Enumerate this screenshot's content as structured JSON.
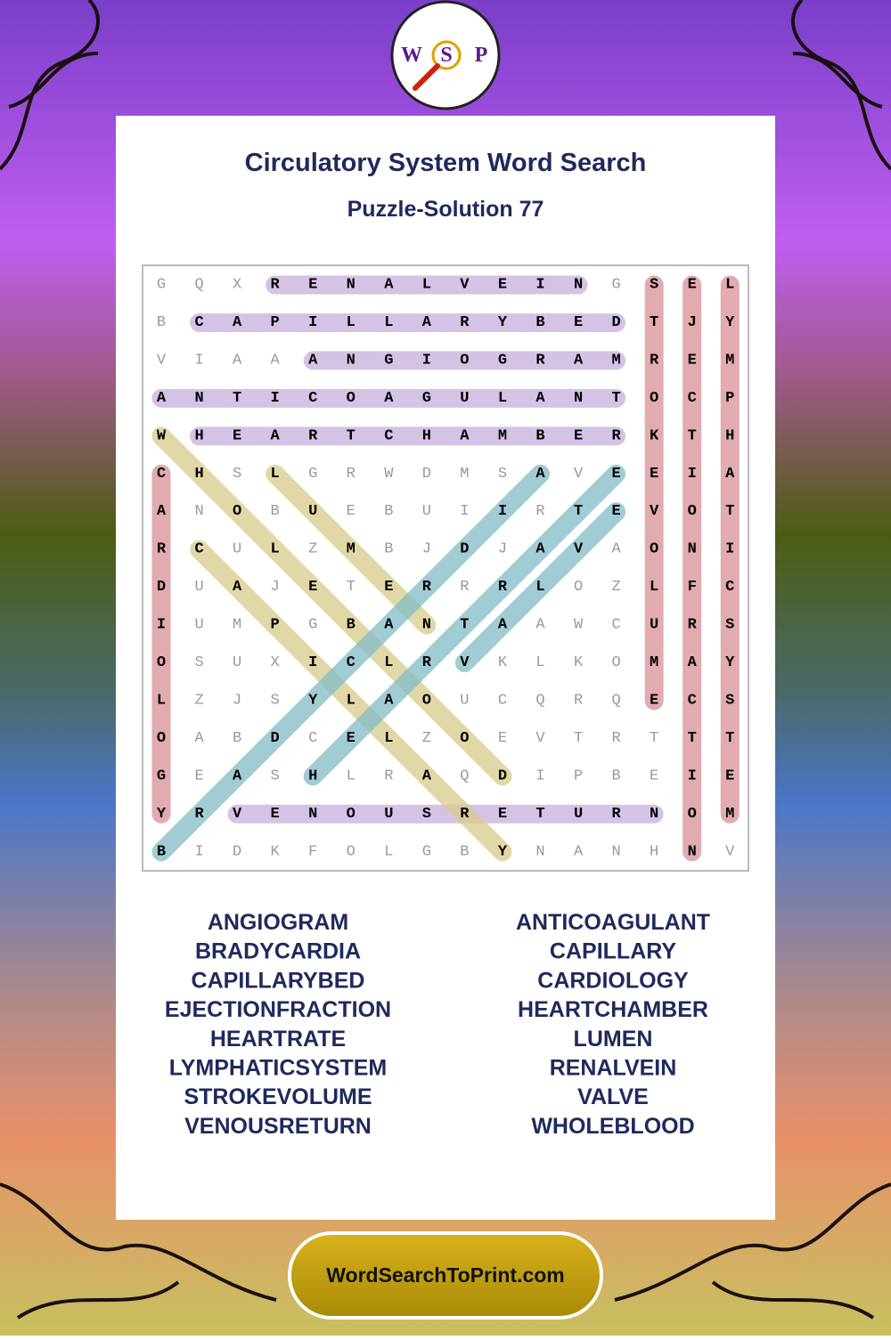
{
  "logo": [
    "W",
    "S",
    "P"
  ],
  "header": {
    "title": "Circulatory System Word Search",
    "subtitle": "Puzzle-Solution 77"
  },
  "grid": [
    [
      "G",
      "Q",
      "X",
      "R",
      "E",
      "N",
      "A",
      "L",
      "V",
      "E",
      "I",
      "N",
      "G",
      "S",
      "E",
      "L"
    ],
    [
      "B",
      "C",
      "A",
      "P",
      "I",
      "L",
      "L",
      "A",
      "R",
      "Y",
      "B",
      "E",
      "D",
      "T",
      "J",
      "Y"
    ],
    [
      "V",
      "I",
      "A",
      "A",
      "A",
      "N",
      "G",
      "I",
      "O",
      "G",
      "R",
      "A",
      "M",
      "R",
      "E",
      "M"
    ],
    [
      "A",
      "N",
      "T",
      "I",
      "C",
      "O",
      "A",
      "G",
      "U",
      "L",
      "A",
      "N",
      "T",
      "O",
      "C",
      "P"
    ],
    [
      "W",
      "H",
      "E",
      "A",
      "R",
      "T",
      "C",
      "H",
      "A",
      "M",
      "B",
      "E",
      "R",
      "K",
      "T",
      "H"
    ],
    [
      "C",
      "H",
      "S",
      "L",
      "G",
      "R",
      "W",
      "D",
      "M",
      "S",
      "A",
      "V",
      "E",
      "E",
      "I",
      "A"
    ],
    [
      "A",
      "N",
      "O",
      "B",
      "U",
      "E",
      "B",
      "U",
      "I",
      "I",
      "R",
      "T",
      "E",
      "V",
      "O",
      "T"
    ],
    [
      "R",
      "C",
      "U",
      "L",
      "Z",
      "M",
      "B",
      "J",
      "D",
      "J",
      "A",
      "V",
      "A",
      "O",
      "N",
      "I"
    ],
    [
      "D",
      "U",
      "A",
      "J",
      "E",
      "T",
      "E",
      "R",
      "R",
      "R",
      "L",
      "O",
      "Z",
      "L",
      "F",
      "C"
    ],
    [
      "I",
      "U",
      "M",
      "P",
      "G",
      "B",
      "A",
      "N",
      "T",
      "A",
      "A",
      "W",
      "C",
      "U",
      "R",
      "S"
    ],
    [
      "O",
      "S",
      "U",
      "X",
      "I",
      "C",
      "L",
      "R",
      "V",
      "K",
      "L",
      "K",
      "O",
      "M",
      "A",
      "Y"
    ],
    [
      "L",
      "Z",
      "J",
      "S",
      "Y",
      "L",
      "A",
      "O",
      "U",
      "C",
      "Q",
      "R",
      "Q",
      "E",
      "C",
      "S"
    ],
    [
      "O",
      "A",
      "B",
      "D",
      "C",
      "E",
      "L",
      "Z",
      "O",
      "E",
      "V",
      "T",
      "R",
      "T",
      "T",
      "T"
    ],
    [
      "G",
      "E",
      "A",
      "S",
      "H",
      "L",
      "R",
      "A",
      "Q",
      "D",
      "I",
      "P",
      "B",
      "E",
      "I",
      "E"
    ],
    [
      "Y",
      "R",
      "V",
      "E",
      "N",
      "O",
      "U",
      "S",
      "R",
      "E",
      "T",
      "U",
      "R",
      "N",
      "O",
      "M"
    ],
    [
      "B",
      "I",
      "D",
      "K",
      "F",
      "O",
      "L",
      "G",
      "B",
      "Y",
      "N",
      "A",
      "N",
      "H",
      "N",
      "V"
    ]
  ],
  "words_left": [
    "ANGIOGRAM",
    "BRADYCARDIA",
    "CAPILLARYBED",
    "EJECTIONFRACTION",
    "HEARTRATE",
    "LYMPHATICSYSTEM",
    "STROKEVOLUME",
    "VENOUSRETURN"
  ],
  "words_right": [
    "ANTICOAGULANT",
    "CAPILLARY",
    "CARDIOLOGY",
    "HEARTCHAMBER",
    "LUMEN",
    "RENALVEIN",
    "VALVE",
    "WHOLEBLOOD"
  ],
  "footer": "WordSearchToPrint.com"
}
